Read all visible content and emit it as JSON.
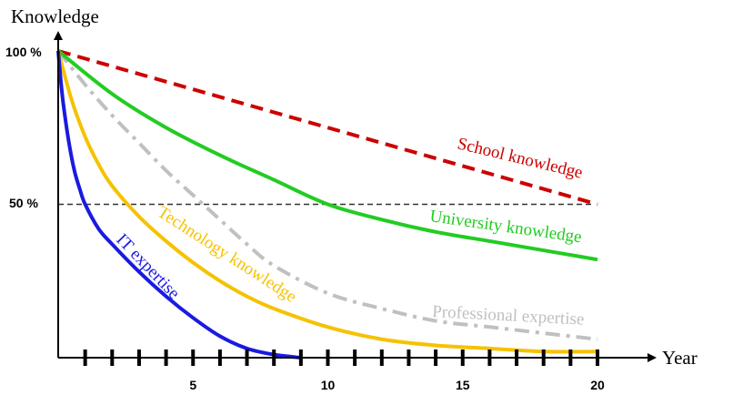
{
  "chart_data": {
    "type": "line",
    "ylabel": "Knowledge",
    "xlabel": "Year",
    "y_tick_labels": [
      "100 %",
      "50 %"
    ],
    "x_tick_labels": [
      "5",
      "10",
      "15",
      "20"
    ],
    "xlim": [
      0,
      20
    ],
    "ylim": [
      0,
      100
    ],
    "reference_line": {
      "y": 50
    },
    "series": [
      {
        "name": "School knowledge",
        "color": "#cc0000",
        "style": "dashed",
        "x": [
          0,
          20
        ],
        "y": [
          100,
          50
        ]
      },
      {
        "name": "University knowledge",
        "color": "#22cc22",
        "style": "solid",
        "x": [
          0,
          2,
          4,
          6,
          8,
          10,
          12,
          14,
          16,
          18,
          20
        ],
        "y": [
          100,
          86,
          75,
          66,
          58,
          50,
          45,
          41,
          38,
          35,
          32
        ]
      },
      {
        "name": "Professional expertise",
        "color": "#c0c0c0",
        "style": "dashdot",
        "x": [
          0,
          1,
          2,
          3,
          4,
          5,
          6,
          7,
          8,
          10,
          12,
          14,
          16,
          18,
          20
        ],
        "y": [
          100,
          89,
          79,
          70,
          61,
          53,
          45,
          37,
          30,
          21,
          16,
          12,
          10,
          8,
          6
        ]
      },
      {
        "name": "Technology knowledge",
        "color": "#f5c200",
        "style": "solid",
        "x": [
          0,
          0.5,
          1,
          1.5,
          2,
          3,
          4,
          5,
          6,
          7,
          8,
          10,
          12,
          14,
          16,
          18,
          20
        ],
        "y": [
          100,
          84,
          72,
          63,
          56,
          46,
          38,
          31,
          25,
          20,
          16,
          10,
          6,
          4,
          3,
          2,
          2
        ]
      },
      {
        "name": "IT expertise",
        "color": "#1a1ae0",
        "style": "solid",
        "x": [
          0,
          0.1,
          0.2,
          0.4,
          0.6,
          0.8,
          1,
          1.5,
          2,
          3,
          4,
          5,
          6,
          7,
          8,
          9
        ],
        "y": [
          100,
          90,
          82,
          70,
          61,
          55,
          50,
          42,
          37,
          28,
          20,
          13,
          7,
          3,
          1,
          0
        ]
      }
    ]
  }
}
